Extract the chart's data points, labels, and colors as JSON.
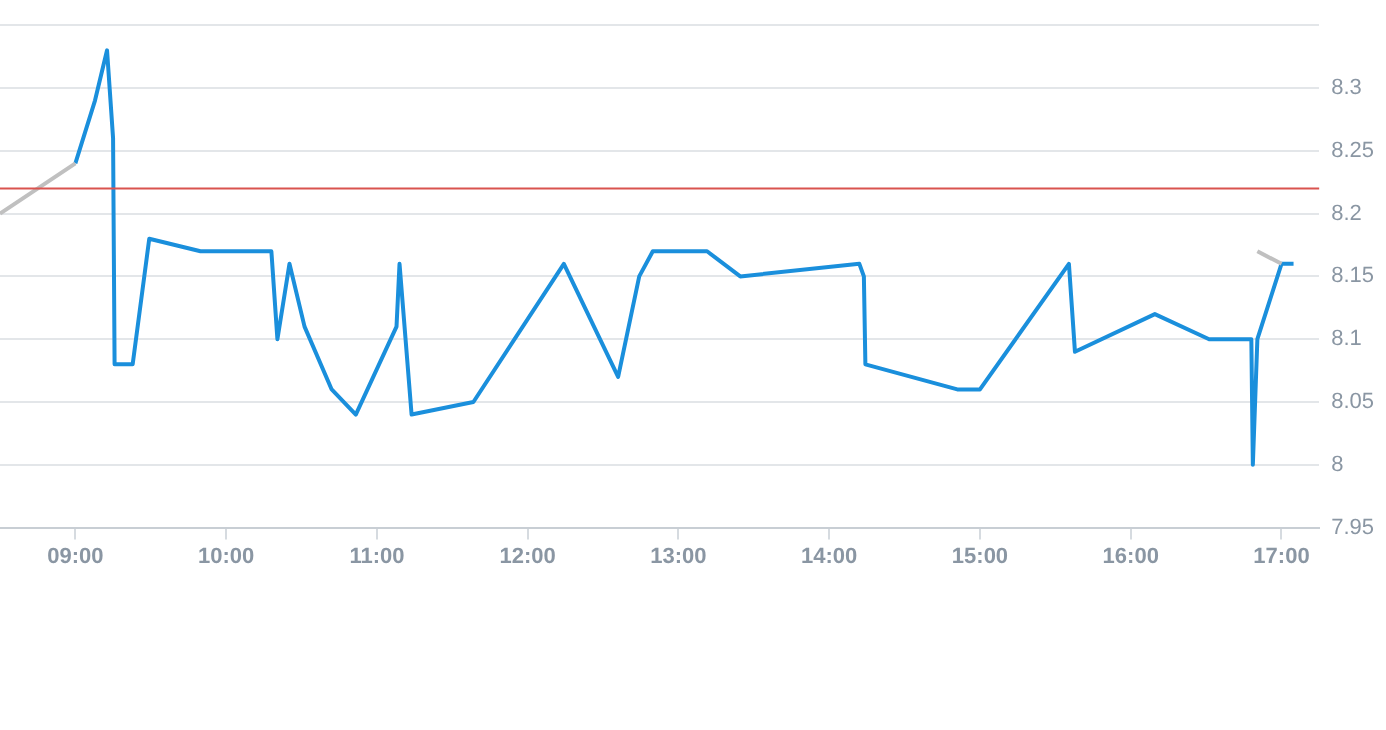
{
  "chart_data": {
    "type": "line",
    "marker": "none",
    "grid": "y",
    "xlim": [
      8.5,
      17.25
    ],
    "ylim": [
      7.95,
      8.35
    ],
    "xticks": [
      {
        "value": 9,
        "label": "09:00"
      },
      {
        "value": 10,
        "label": "10:00"
      },
      {
        "value": 11,
        "label": "11:00"
      },
      {
        "value": 12,
        "label": "12:00"
      },
      {
        "value": 13,
        "label": "13:00"
      },
      {
        "value": 14,
        "label": "14:00"
      },
      {
        "value": 15,
        "label": "15:00"
      },
      {
        "value": 16,
        "label": "16:00"
      },
      {
        "value": 17,
        "label": "17:00"
      }
    ],
    "yticks": [
      7.95,
      8,
      8.05,
      8.1,
      8.15,
      8.2,
      8.25,
      8.3,
      {
        "value": 8.35,
        "label": null
      }
    ],
    "ref_lines": [
      {
        "axis": "y",
        "value": 8.22,
        "color": "#d9534f"
      }
    ],
    "series": [
      {
        "color": "#c0c0c0",
        "x": [
          8.5,
          9.0,
          12.0,
          16.84,
          17.0
        ],
        "values": [
          8.2,
          8.24,
          null,
          8.17,
          8.16
        ]
      },
      {
        "color": "#1a8fdc",
        "x": [
          9.0,
          9.13,
          9.21,
          9.25,
          9.26,
          9.38,
          9.49,
          9.83,
          10.3,
          10.34,
          10.42,
          10.52,
          10.7,
          10.86,
          11.13,
          11.15,
          11.23,
          11.64,
          12.24,
          12.6,
          12.74,
          12.83,
          13.19,
          13.41,
          14.2,
          14.23,
          14.24,
          14.85,
          15.0,
          15.59,
          15.63,
          16.16,
          16.52,
          16.8,
          16.81,
          16.84,
          17.0,
          17.08
        ],
        "values": [
          8.24,
          8.29,
          8.33,
          8.26,
          8.08,
          8.08,
          8.18,
          8.17,
          8.17,
          8.1,
          8.16,
          8.11,
          8.06,
          8.04,
          8.11,
          8.16,
          8.04,
          8.05,
          8.16,
          8.07,
          8.15,
          8.17,
          8.17,
          8.15,
          8.16,
          8.15,
          8.08,
          8.06,
          8.06,
          8.16,
          8.09,
          8.12,
          8.1,
          8.1,
          8.0,
          8.1,
          8.16,
          8.16
        ]
      }
    ]
  }
}
